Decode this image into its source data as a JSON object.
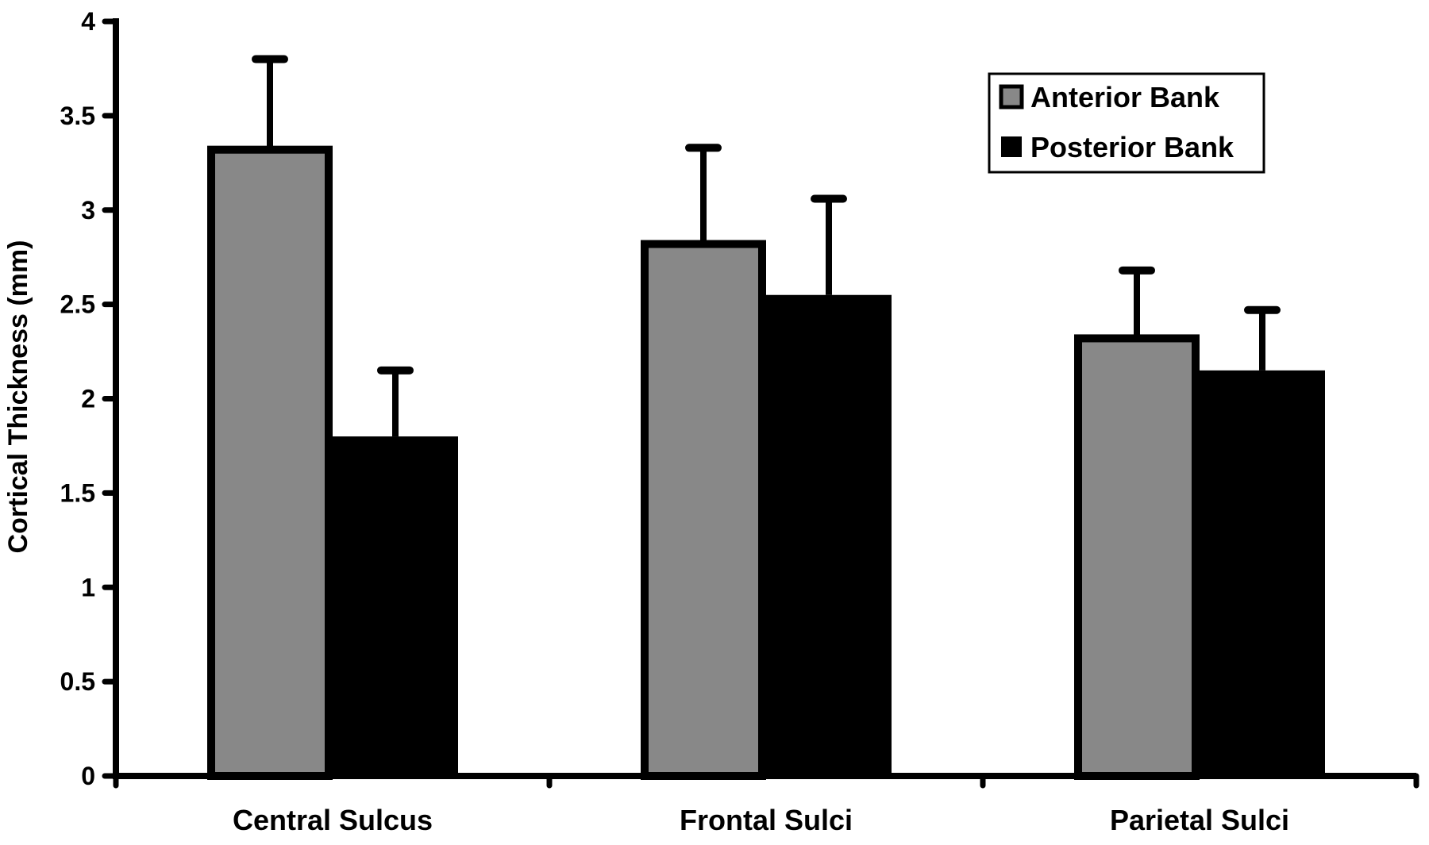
{
  "colors": {
    "anterior": "#888888",
    "posterior": "#000000",
    "axis": "#000000",
    "background": "#ffffff"
  },
  "chart_data": {
    "type": "bar",
    "title": "",
    "xlabel": "",
    "ylabel": "Cortical Thickness (mm)",
    "categories": [
      "Central Sulcus",
      "Frontal Sulci",
      "Parietal Sulci"
    ],
    "series": [
      {
        "name": "Anterior Bank",
        "values": [
          3.32,
          2.82,
          2.32
        ],
        "error_upper": [
          3.8,
          3.33,
          2.68
        ]
      },
      {
        "name": "Posterior Bank",
        "values": [
          1.8,
          2.55,
          2.15
        ],
        "error_upper": [
          2.15,
          3.06,
          2.47
        ]
      }
    ],
    "ylim": [
      0,
      4
    ],
    "yticks": [
      "0",
      "0.5",
      "1",
      "1.5",
      "2",
      "2.5",
      "3",
      "3.5",
      "4"
    ],
    "grid": false,
    "legend_position": "top-right"
  }
}
